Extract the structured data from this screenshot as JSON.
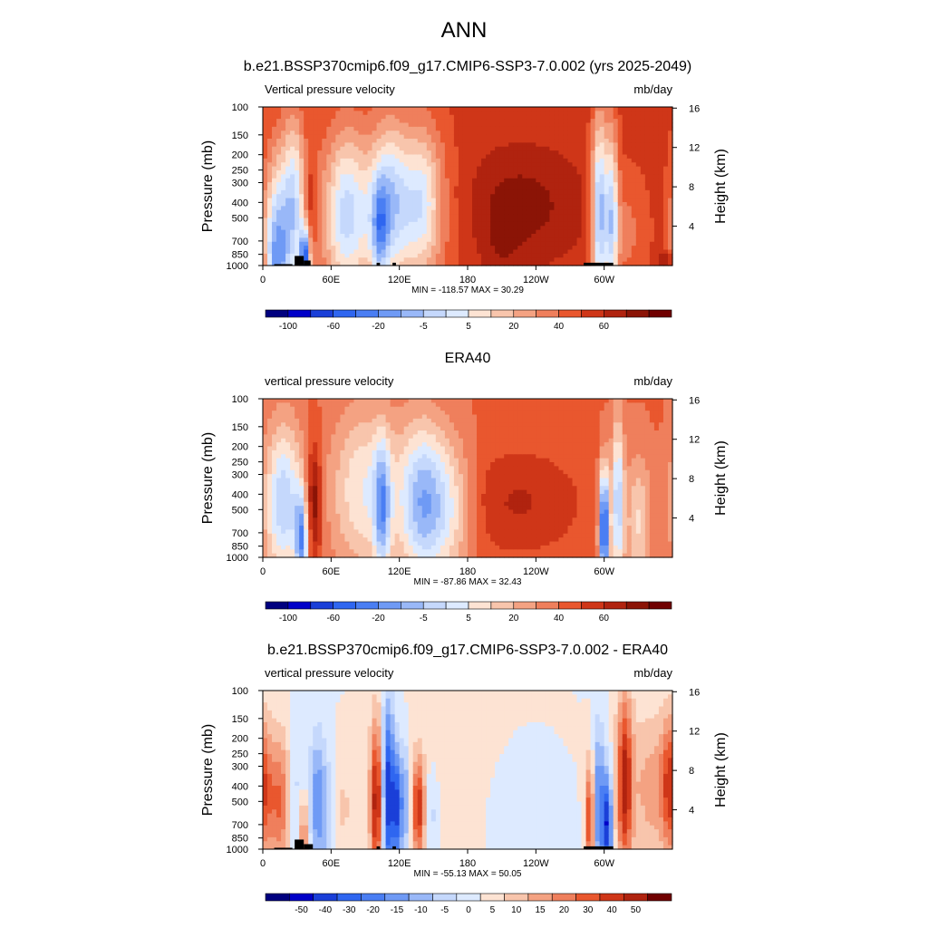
{
  "page_title": "ANN",
  "colors": {
    "missing_fill": "#000000",
    "frame": "#000000"
  },
  "chart_data": [
    {
      "type": "heatmap",
      "panel": "model",
      "title": "b.e21.BSSP370cmip6.f09_g17.CMIP6-SSP3-7.0.002 (yrs 2025-2049)",
      "left_label": "Vertical pressure velocity",
      "right_label": "mb/day",
      "ylabel": "Pressure (mb)",
      "ylabel_right": "Height (km)",
      "xlabel": "",
      "x_ticks": [
        "0",
        "60E",
        "120E",
        "180",
        "120W",
        "60W"
      ],
      "x_tick_values": [
        0,
        60,
        120,
        180,
        240,
        300
      ],
      "xlim": [
        0,
        360
      ],
      "y_ticks": [
        "100",
        "150",
        "200",
        "250",
        "300",
        "400",
        "500",
        "700",
        "850",
        "1000"
      ],
      "y_tick_values": [
        100,
        150,
        200,
        250,
        300,
        400,
        500,
        700,
        850,
        1000
      ],
      "ylim": [
        1000,
        100
      ],
      "y_scale": "log",
      "height_ticks": [
        "4",
        "8",
        "12",
        "16"
      ],
      "height_tick_values": [
        4,
        8,
        12,
        16
      ],
      "stats_text": "MIN = -118.57  MAX =  30.29",
      "min": -118.57,
      "max": 30.29,
      "colorbar_labels": [
        "-100",
        "-60",
        "-20",
        "-5",
        "5",
        "20",
        "40",
        "60"
      ],
      "colorbar_colors": [
        "#00007f",
        "#0000c8",
        "#1a3fd8",
        "#2f66f0",
        "#4a7ef3",
        "#6f9af5",
        "#99b8f8",
        "#c5d8fc",
        "#ddeaff",
        "#fde3d3",
        "#f8c5ac",
        "#f4a282",
        "#ef7f5c",
        "#e9572e",
        "#cf3618",
        "#b0230f",
        "#8b1406",
        "#700000"
      ],
      "missing_segments": [
        [
          10,
          26,
          980,
          1000
        ],
        [
          28,
          36,
          870,
          1000
        ],
        [
          36,
          42,
          930,
          1000
        ],
        [
          100,
          103,
          960,
          1000
        ],
        [
          114,
          117,
          960,
          1000
        ],
        [
          282,
          308,
          960,
          1000
        ]
      ],
      "features": [
        {
          "lon": 12,
          "w": 8,
          "p": 1000,
          "dp": 1.0,
          "v": -70
        },
        {
          "lon": 27,
          "w": 7,
          "p": 400,
          "dp": 0.9,
          "v": -45
        },
        {
          "lon": 37,
          "w": 3,
          "p": 900,
          "dp": 0.3,
          "v": -80
        },
        {
          "lon": 42,
          "w": 4,
          "p": 400,
          "dp": 0.5,
          "v": 18
        },
        {
          "lon": 100,
          "w": 40,
          "p": 470,
          "dp": 0.85,
          "v": -40
        },
        {
          "lon": 112,
          "w": 10,
          "p": 350,
          "dp": 0.8,
          "v": -25
        },
        {
          "lon": 140,
          "w": 12,
          "p": 380,
          "dp": 0.75,
          "v": -30
        },
        {
          "lon": 103,
          "w": 5,
          "p": 600,
          "dp": 0.5,
          "v": -35
        },
        {
          "lon": 72,
          "w": 10,
          "p": 500,
          "dp": 0.9,
          "v": -25
        },
        {
          "lon": 225,
          "w": 40,
          "p": 420,
          "dp": 0.6,
          "v": 18
        },
        {
          "lon": 210,
          "w": 12,
          "p": 800,
          "dp": 0.35,
          "v": 7
        },
        {
          "lon": 296,
          "w": 5,
          "p": 450,
          "dp": 0.95,
          "v": -65
        },
        {
          "lon": 307,
          "w": 4,
          "p": 500,
          "dp": 0.9,
          "v": -50
        },
        {
          "lon": 320,
          "w": 12,
          "p": 600,
          "dp": 0.6,
          "v": -14
        },
        {
          "lon": 355,
          "w": 6,
          "p": 930,
          "dp": 0.1,
          "v": 20
        }
      ]
    },
    {
      "type": "heatmap",
      "panel": "obs",
      "title": "ERA40",
      "left_label": "vertical pressure velocity",
      "right_label": "mb/day",
      "ylabel": "Pressure (mb)",
      "ylabel_right": "Height (km)",
      "xlabel": "",
      "x_ticks": [
        "0",
        "60E",
        "120E",
        "180",
        "120W",
        "60W"
      ],
      "x_tick_values": [
        0,
        60,
        120,
        180,
        240,
        300
      ],
      "xlim": [
        0,
        360
      ],
      "y_ticks": [
        "100",
        "150",
        "200",
        "250",
        "300",
        "400",
        "500",
        "700",
        "850",
        "1000"
      ],
      "y_tick_values": [
        100,
        150,
        200,
        250,
        300,
        400,
        500,
        700,
        850,
        1000
      ],
      "ylim": [
        1000,
        100
      ],
      "y_scale": "log",
      "height_ticks": [
        "4",
        "8",
        "12",
        "16"
      ],
      "height_tick_values": [
        4,
        8,
        12,
        16
      ],
      "stats_text": "MIN = -87.86  MAX =  32.43",
      "min": -87.86,
      "max": 32.43,
      "colorbar_labels": [
        "-100",
        "-60",
        "-20",
        "-5",
        "5",
        "20",
        "40",
        "60"
      ],
      "colorbar_colors": [
        "#00007f",
        "#0000c8",
        "#1a3fd8",
        "#2f66f0",
        "#4a7ef3",
        "#6f9af5",
        "#99b8f8",
        "#c5d8fc",
        "#ddeaff",
        "#fde3d3",
        "#f8c5ac",
        "#f4a282",
        "#ef7f5c",
        "#e9572e",
        "#cf3618",
        "#b0230f",
        "#8b1406",
        "#700000"
      ],
      "missing_segments": [],
      "features": [
        {
          "lon": 18,
          "w": 12,
          "p": 450,
          "dp": 0.8,
          "v": -40
        },
        {
          "lon": 34,
          "w": 4,
          "p": 800,
          "dp": 0.5,
          "v": -45
        },
        {
          "lon": 45,
          "w": 5,
          "p": 450,
          "dp": 0.6,
          "v": 28
        },
        {
          "lon": 90,
          "w": 22,
          "p": 380,
          "dp": 0.85,
          "v": -28
        },
        {
          "lon": 105,
          "w": 5,
          "p": 500,
          "dp": 0.7,
          "v": -35
        },
        {
          "lon": 140,
          "w": 14,
          "p": 450,
          "dp": 0.8,
          "v": -42
        },
        {
          "lon": 165,
          "w": 15,
          "p": 480,
          "dp": 0.7,
          "v": -25
        },
        {
          "lon": 225,
          "w": 40,
          "p": 450,
          "dp": 0.55,
          "v": 13
        },
        {
          "lon": 300,
          "w": 3,
          "p": 650,
          "dp": 0.6,
          "v": -75
        },
        {
          "lon": 312,
          "w": 4,
          "p": 450,
          "dp": 0.85,
          "v": -40
        },
        {
          "lon": 330,
          "w": 8,
          "p": 600,
          "dp": 0.7,
          "v": -22
        }
      ]
    },
    {
      "type": "heatmap",
      "panel": "diff",
      "title": "b.e21.BSSP370cmip6.f09_g17.CMIP6-SSP3-7.0.002 - ERA40",
      "left_label": "vertical pressure velocity",
      "right_label": "mb/day",
      "ylabel": "Pressure (mb)",
      "ylabel_right": "Height (km)",
      "xlabel": "",
      "x_ticks": [
        "0",
        "60E",
        "120E",
        "180",
        "120W",
        "60W"
      ],
      "x_tick_values": [
        0,
        60,
        120,
        180,
        240,
        300
      ],
      "xlim": [
        0,
        360
      ],
      "y_ticks": [
        "100",
        "150",
        "200",
        "250",
        "300",
        "400",
        "500",
        "700",
        "850",
        "1000"
      ],
      "y_tick_values": [
        100,
        150,
        200,
        250,
        300,
        400,
        500,
        700,
        850,
        1000
      ],
      "ylim": [
        1000,
        100
      ],
      "y_scale": "log",
      "height_ticks": [
        "4",
        "8",
        "12",
        "16"
      ],
      "height_tick_values": [
        4,
        8,
        12,
        16
      ],
      "stats_text": "MIN = -55.13  MAX =  50.05",
      "min": -55.13,
      "max": 50.05,
      "colorbar_labels": [
        "-50",
        "-40",
        "-30",
        "-20",
        "-15",
        "-10",
        "-5",
        "0",
        "5",
        "10",
        "15",
        "20",
        "30",
        "40",
        "50"
      ],
      "colorbar_colors": [
        "#00007f",
        "#0000c8",
        "#1a3fd8",
        "#2f66f0",
        "#4a7ef3",
        "#6f9af5",
        "#99b8f8",
        "#c5d8fc",
        "#ddeaff",
        "#fde3d3",
        "#f8c5ac",
        "#f4a282",
        "#ef7f5c",
        "#e9572e",
        "#cf3618",
        "#b0230f",
        "#700000"
      ],
      "missing_segments": [
        [
          10,
          26,
          980,
          1000
        ],
        [
          28,
          36,
          870,
          1000
        ],
        [
          36,
          44,
          930,
          1000
        ],
        [
          100,
          103,
          960,
          1000
        ],
        [
          114,
          117,
          960,
          1000
        ],
        [
          282,
          308,
          960,
          1000
        ]
      ],
      "features": [
        {
          "lon": 15,
          "w": 8,
          "p": 500,
          "dp": 0.7,
          "v": 26
        },
        {
          "lon": 28,
          "w": 5,
          "p": 480,
          "dp": 0.7,
          "v": -12
        },
        {
          "lon": 36,
          "w": 3,
          "p": 800,
          "dp": 0.4,
          "v": 22
        },
        {
          "lon": 48,
          "w": 5,
          "p": 500,
          "dp": 0.7,
          "v": -22
        },
        {
          "lon": 58,
          "w": 6,
          "p": 600,
          "dp": 0.6,
          "v": -10
        },
        {
          "lon": 70,
          "w": 6,
          "p": 550,
          "dp": 0.6,
          "v": 8
        },
        {
          "lon": 100,
          "w": 4,
          "p": 500,
          "dp": 0.8,
          "v": 42
        },
        {
          "lon": 110,
          "w": 4,
          "p": 450,
          "dp": 0.9,
          "v": -45
        },
        {
          "lon": 118,
          "w": 3,
          "p": 550,
          "dp": 0.6,
          "v": -35
        },
        {
          "lon": 125,
          "w": 3,
          "p": 500,
          "dp": 0.6,
          "v": -20
        },
        {
          "lon": 137,
          "w": 4,
          "p": 550,
          "dp": 0.5,
          "v": 36
        },
        {
          "lon": 148,
          "w": 5,
          "p": 600,
          "dp": 0.5,
          "v": -10
        },
        {
          "lon": 180,
          "w": 60,
          "p": 400,
          "dp": 1.2,
          "v": 4
        },
        {
          "lon": 225,
          "w": 25,
          "p": 600,
          "dp": 0.8,
          "v": -6
        },
        {
          "lon": 288,
          "w": 3,
          "p": 650,
          "dp": 0.6,
          "v": 38
        },
        {
          "lon": 295,
          "w": 4,
          "p": 550,
          "dp": 0.8,
          "v": -28
        },
        {
          "lon": 303,
          "w": 3,
          "p": 700,
          "dp": 0.5,
          "v": -40
        },
        {
          "lon": 318,
          "w": 5,
          "p": 380,
          "dp": 0.9,
          "v": 40
        },
        {
          "lon": 340,
          "w": 12,
          "p": 420,
          "dp": 0.8,
          "v": 15
        },
        {
          "lon": 358,
          "w": 6,
          "p": 400,
          "dp": 0.7,
          "v": 30
        }
      ]
    }
  ]
}
